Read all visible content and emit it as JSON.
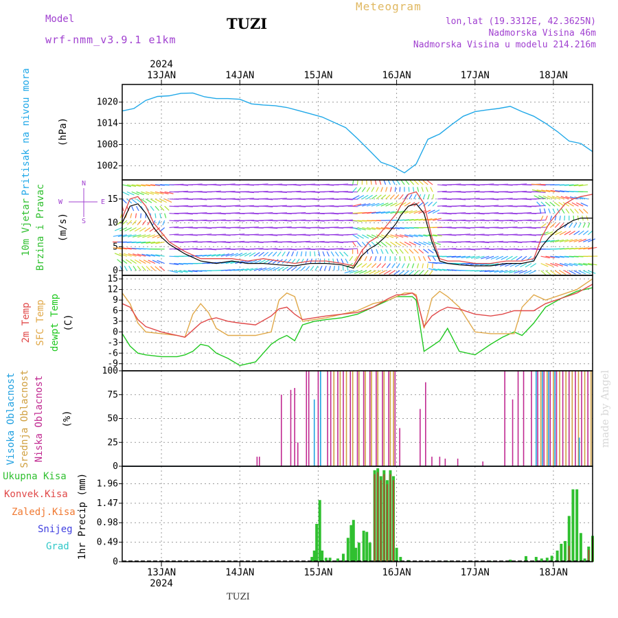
{
  "header": {
    "model_label": "Model",
    "model_name": "wrf-nmm_v3.9.1 e1km",
    "station": "TUZI",
    "product": "Meteogram",
    "location": "lon,lat (19.3312E, 42.3625N)",
    "elevation": "Nadmorska Visina 46m",
    "model_elevation": "Nadmorska Visina u modelu 214.216m",
    "footer_station": "TUZI",
    "credit": "made by Angel"
  },
  "colors": {
    "pressure": "#20a8e8",
    "temp2m": "#e04848",
    "sfc_temp": "#e0a848",
    "dewpoint": "#20c820",
    "high_cloud": "#20a0e0",
    "mid_cloud": "#d0a040",
    "low_cloud": "#c02890",
    "total_precip": "#30c030",
    "convective": "#e04848",
    "header_purple": "#a040d0",
    "header_gold": "#e0b860"
  },
  "time_axis": {
    "year": "2024",
    "day_labels": [
      "13JAN",
      "14JAN",
      "15JAN",
      "16JAN",
      "17JAN",
      "18JAN"
    ],
    "range_days": [
      12.5,
      18.5
    ]
  },
  "chart_data": [
    {
      "type": "line",
      "panel": "pressure",
      "ylabel_main": "Pritisak na nivou mora",
      "ylabel_unit": "(hPa)",
      "yticks": [
        "1020",
        "1014",
        "1008",
        "1002"
      ],
      "ylim": [
        998,
        1025
      ],
      "x_day": [
        12.5,
        12.65,
        12.8,
        12.95,
        13.1,
        13.25,
        13.4,
        13.55,
        13.7,
        13.85,
        14.0,
        14.15,
        14.3,
        14.45,
        14.6,
        14.75,
        14.9,
        15.05,
        15.2,
        15.35,
        15.5,
        15.65,
        15.8,
        15.95,
        16.1,
        16.25,
        16.4,
        16.55,
        16.7,
        16.85,
        17.0,
        17.15,
        17.3,
        17.45,
        17.6,
        17.75,
        17.9,
        18.05,
        18.2,
        18.35,
        18.5
      ],
      "y": [
        1017.5,
        1018.2,
        1020.5,
        1021.6,
        1021.8,
        1022.5,
        1022.6,
        1021.5,
        1021.0,
        1021.0,
        1020.8,
        1019.5,
        1019.2,
        1019.0,
        1018.5,
        1017.6,
        1016.7,
        1015.8,
        1014.3,
        1012.8,
        1009.7,
        1006.4,
        1003.0,
        1001.8,
        1000.0,
        1002.5,
        1009.5,
        1011.0,
        1013.6,
        1016.0,
        1017.3,
        1017.8,
        1018.2,
        1018.8,
        1017.3,
        1016.0,
        1014.0,
        1011.7,
        1009.0,
        1008.3,
        1006.0
      ]
    },
    {
      "type": "line",
      "panel": "wind",
      "ylabel_main": "10m Vjetar",
      "ylabel_sub": "Brzina i Pravac",
      "ylabel_unit": "(m/s)",
      "compass": [
        "N",
        "E",
        "S",
        "W"
      ],
      "yticks": [
        "15",
        "10",
        "5",
        "0"
      ],
      "ylim": [
        -1,
        19
      ],
      "x_day": [
        12.5,
        12.6,
        12.7,
        12.8,
        12.9,
        13.0,
        13.1,
        13.3,
        13.5,
        13.7,
        13.9,
        14.1,
        14.3,
        14.5,
        14.7,
        14.9,
        15.1,
        15.3,
        15.45,
        15.55,
        15.65,
        15.75,
        15.85,
        15.95,
        16.0,
        16.05,
        16.15,
        16.25,
        16.35,
        16.45,
        16.55,
        16.65,
        16.8,
        17.0,
        17.2,
        17.4,
        17.6,
        17.75,
        17.85,
        17.95,
        18.05,
        18.15,
        18.25,
        18.35,
        18.5
      ],
      "y": [
        10.0,
        13.5,
        14.0,
        12.0,
        9.0,
        7.0,
        5.5,
        3.5,
        2.0,
        1.5,
        2.0,
        1.5,
        1.5,
        1.2,
        1.0,
        1.5,
        1.5,
        1.2,
        0.5,
        3.0,
        4.5,
        5.5,
        7.0,
        9.0,
        10.0,
        11.5,
        13.5,
        14.0,
        12.0,
        6.0,
        2.0,
        1.5,
        1.2,
        1.0,
        1.0,
        1.5,
        1.5,
        2.0,
        5.0,
        7.0,
        8.5,
        9.5,
        10.5,
        11.0,
        11.0
      ],
      "gust_y": [
        11.0,
        15.0,
        15.5,
        13.5,
        10.0,
        8.0,
        6.0,
        4.0,
        2.5,
        2.5,
        2.5,
        2.0,
        2.5,
        2.0,
        1.5,
        2.0,
        2.0,
        1.5,
        1.0,
        4.0,
        6.0,
        7.0,
        9.0,
        11.0,
        12.0,
        13.5,
        16.0,
        16.5,
        14.0,
        7.0,
        2.5,
        2.0,
        2.0,
        1.5,
        1.5,
        2.0,
        2.0,
        2.5,
        7.0,
        10.0,
        12.0,
        14.0,
        15.0,
        15.5,
        16.0
      ]
    },
    {
      "type": "line",
      "panel": "temperature",
      "ylabel_main": "2m Temp",
      "ylabel_sub": "SFC Temp",
      "ylabel_sub2": "dewpt Temp",
      "ylabel_unit": "(C)",
      "yticks": [
        "15",
        "12",
        "9",
        "6",
        "3",
        "0",
        "-3",
        "-6",
        "-9"
      ],
      "ylim": [
        -11,
        16
      ],
      "x_day": [
        12.5,
        12.6,
        12.7,
        12.8,
        13.0,
        13.2,
        13.3,
        13.4,
        13.5,
        13.6,
        13.7,
        13.85,
        14.0,
        14.2,
        14.4,
        14.5,
        14.6,
        14.7,
        14.8,
        14.95,
        15.1,
        15.3,
        15.5,
        15.7,
        15.9,
        16.0,
        16.1,
        16.2,
        16.25,
        16.35,
        16.45,
        16.55,
        16.65,
        16.8,
        17.0,
        17.2,
        17.35,
        17.5,
        17.6,
        17.75,
        17.9,
        18.1,
        18.3,
        18.5
      ],
      "t2m": [
        8.0,
        7.0,
        3.5,
        1.5,
        0.0,
        -1.0,
        -1.5,
        0.5,
        2.5,
        3.5,
        4.0,
        3.0,
        2.5,
        2.0,
        4.5,
        6.5,
        7.0,
        5.0,
        3.5,
        4.0,
        4.5,
        5.0,
        5.5,
        7.0,
        9.5,
        10.5,
        10.5,
        11.0,
        10.0,
        1.5,
        4.5,
        6.0,
        7.0,
        6.5,
        5.0,
        4.5,
        5.0,
        6.0,
        6.0,
        6.0,
        8.0,
        9.5,
        11.0,
        13.5
      ],
      "sfc": [
        11.0,
        8.0,
        2.5,
        0.0,
        -0.5,
        -1.0,
        -1.5,
        5.0,
        8.0,
        5.5,
        1.0,
        -1.0,
        -1.0,
        -1.0,
        0.0,
        9.0,
        11.0,
        10.0,
        3.0,
        3.5,
        4.0,
        5.0,
        6.0,
        8.0,
        9.0,
        10.0,
        11.0,
        11.0,
        10.5,
        1.0,
        9.5,
        11.5,
        10.0,
        7.0,
        0.0,
        -0.5,
        -0.5,
        -0.5,
        7.0,
        10.5,
        9.0,
        10.5,
        12.0,
        15.0
      ],
      "dewpt": [
        -0.5,
        -4.0,
        -6.0,
        -6.5,
        -7.0,
        -7.0,
        -6.5,
        -5.5,
        -3.5,
        -4.0,
        -6.0,
        -7.5,
        -9.5,
        -8.5,
        -3.5,
        -2.0,
        -1.0,
        -2.5,
        2.0,
        3.0,
        3.5,
        4.0,
        5.0,
        7.0,
        9.0,
        10.0,
        10.0,
        10.0,
        9.0,
        -5.5,
        -4.0,
        -2.5,
        1.0,
        -5.5,
        -6.5,
        -3.5,
        -1.5,
        0.0,
        -1.0,
        2.5,
        7.0,
        9.5,
        11.5,
        12.5
      ]
    },
    {
      "type": "bar",
      "panel": "clouds",
      "ylabel_main": "Visoka Oblacnost",
      "ylabel_sub": "Srednja Oblacnost",
      "ylabel_sub2": "Niska Oblacnost",
      "ylabel_unit": "(%)",
      "yticks": [
        "100",
        "75",
        "50",
        "25",
        "0"
      ],
      "ylim": [
        0,
        100
      ],
      "series": [
        {
          "name": "Niska Oblacnost",
          "x_day": [
            14.22,
            14.25,
            14.53,
            14.65,
            14.7,
            14.74,
            14.85,
            14.88,
            15.0,
            15.12,
            15.16,
            15.25,
            15.32,
            15.41,
            15.5,
            15.58,
            15.66,
            15.74,
            15.82,
            15.9,
            15.98,
            16.04,
            16.3,
            16.37,
            16.45,
            16.55,
            16.62,
            16.78,
            17.1,
            17.38,
            17.48,
            17.55,
            17.62,
            17.72,
            17.8,
            17.88,
            17.96,
            18.04,
            18.12,
            18.2,
            18.28,
            18.36,
            18.44
          ],
          "values": [
            10,
            10,
            75,
            80,
            82,
            25,
            100,
            100,
            100,
            100,
            100,
            100,
            100,
            100,
            100,
            100,
            100,
            100,
            100,
            100,
            100,
            40,
            60,
            88,
            10,
            10,
            8,
            8,
            5,
            100,
            70,
            100,
            100,
            100,
            100,
            100,
            100,
            100,
            100,
            100,
            100,
            100,
            100
          ]
        },
        {
          "name": "Srednja Oblacnost",
          "x_day": [
            15.2,
            15.28,
            15.36,
            15.44,
            15.52,
            15.6,
            15.68,
            15.76,
            15.84,
            15.92,
            15.96,
            17.84,
            17.92,
            18.0,
            18.08,
            18.16,
            18.24,
            18.32,
            18.4,
            18.48
          ],
          "values": [
            100,
            100,
            100,
            100,
            100,
            100,
            100,
            100,
            100,
            100,
            100,
            100,
            100,
            100,
            100,
            100,
            100,
            100,
            100,
            100
          ]
        },
        {
          "name": "Visoka Oblacnost",
          "x_day": [
            14.95,
            15.03,
            17.78,
            17.86,
            17.94,
            18.02,
            18.33
          ],
          "values": [
            70,
            100,
            100,
            100,
            100,
            100,
            30
          ]
        }
      ]
    },
    {
      "type": "bar",
      "panel": "precipitation",
      "ylabel_unit": "1hr Precip (mm)",
      "legend": [
        "Ukupna Kisa",
        "Konvek.Kisa",
        "Zaledj.Kisa",
        "Snijeg",
        "Grad"
      ],
      "yticks": [
        "1.96",
        "1.47",
        "0.98",
        "0.49",
        "0"
      ],
      "ylim": [
        0,
        2.4
      ],
      "series": [
        {
          "name": "Ukupna Kisa",
          "x_day": [
            14.92,
            14.95,
            14.98,
            15.02,
            15.05,
            15.1,
            15.15,
            15.25,
            15.32,
            15.38,
            15.42,
            15.45,
            15.48,
            15.52,
            15.58,
            15.62,
            15.66,
            15.72,
            15.76,
            15.8,
            15.84,
            15.88,
            15.92,
            15.96,
            16.0,
            16.05,
            16.15,
            16.65,
            16.95,
            17.2,
            17.45,
            17.65,
            17.78,
            17.85,
            17.92,
            17.98,
            18.05,
            18.1,
            18.15,
            18.2,
            18.25,
            18.3,
            18.35,
            18.4,
            18.45,
            18.5
          ],
          "values": [
            0.12,
            0.28,
            0.95,
            1.55,
            0.28,
            0.1,
            0.1,
            0.08,
            0.2,
            0.6,
            0.92,
            1.05,
            0.35,
            0.48,
            0.78,
            0.75,
            0.48,
            2.3,
            2.35,
            2.15,
            2.3,
            2.05,
            2.3,
            2.15,
            0.35,
            0.12,
            0.04,
            0.02,
            0.02,
            0.02,
            0.05,
            0.14,
            0.12,
            0.08,
            0.1,
            0.15,
            0.28,
            0.45,
            0.52,
            1.15,
            1.82,
            1.82,
            0.72,
            0.08,
            0.38,
            0.65
          ]
        },
        {
          "name": "Konvek.Kisa",
          "x_day": [
            15.72,
            15.76,
            15.8,
            15.84,
            15.88,
            15.92,
            15.96,
            18.2,
            18.45,
            18.5
          ],
          "values": [
            2.2,
            2.25,
            2.05,
            2.2,
            1.95,
            2.2,
            2.05,
            0.4,
            0.3,
            0.6
          ]
        }
      ]
    }
  ]
}
